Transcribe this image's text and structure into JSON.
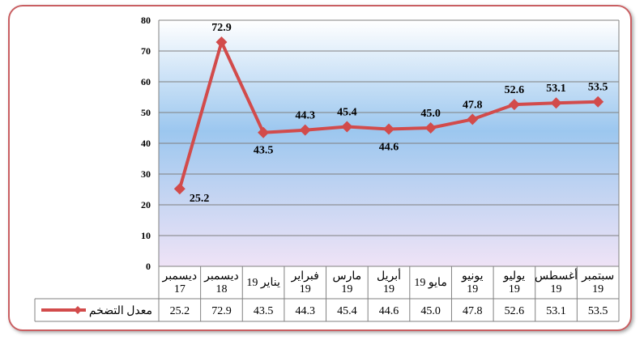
{
  "chart_data": {
    "type": "line",
    "categories": [
      [
        "ديسمبر",
        "17"
      ],
      [
        "ديسمبر",
        "18"
      ],
      [
        "يناير 19"
      ],
      [
        "فبراير",
        "19"
      ],
      [
        "مارس",
        "19"
      ],
      [
        "أبريل",
        "19"
      ],
      [
        "مايو 19"
      ],
      [
        "يونيو",
        "19"
      ],
      [
        "يوليو",
        "19"
      ],
      [
        "أغسطس",
        "19"
      ],
      [
        "سبتمبر",
        "19"
      ]
    ],
    "series": [
      {
        "name": "معدل التضخم",
        "values": [
          25.2,
          72.9,
          43.5,
          44.3,
          45.4,
          44.6,
          45.0,
          47.8,
          52.6,
          53.1,
          53.5
        ],
        "labels": [
          "25.2",
          "72.9",
          "43.5",
          "44.3",
          "45.4",
          "44.6",
          "45.0",
          "47.8",
          "52.6",
          "53.1",
          "53.5"
        ],
        "label_pos": [
          "right",
          "above",
          "below",
          "above",
          "above",
          "below",
          "above",
          "above",
          "above",
          "above",
          "above"
        ],
        "color": "#d24b4b"
      }
    ],
    "yticks": [
      "0",
      "10",
      "20",
      "30",
      "40",
      "50",
      "60",
      "70",
      "80"
    ],
    "ylim": [
      0,
      80
    ],
    "grid": true,
    "data_table": true,
    "legend": "data-table",
    "colors": {
      "plot_bg_top": "#ffffff",
      "plot_bg_mid": "#9cc7ef",
      "plot_bg_bottom": "#efe3f6",
      "frame_border": "#c95f62",
      "gridline": "#7f7f7f",
      "line": "#d24b4b",
      "text": "#000000"
    }
  }
}
